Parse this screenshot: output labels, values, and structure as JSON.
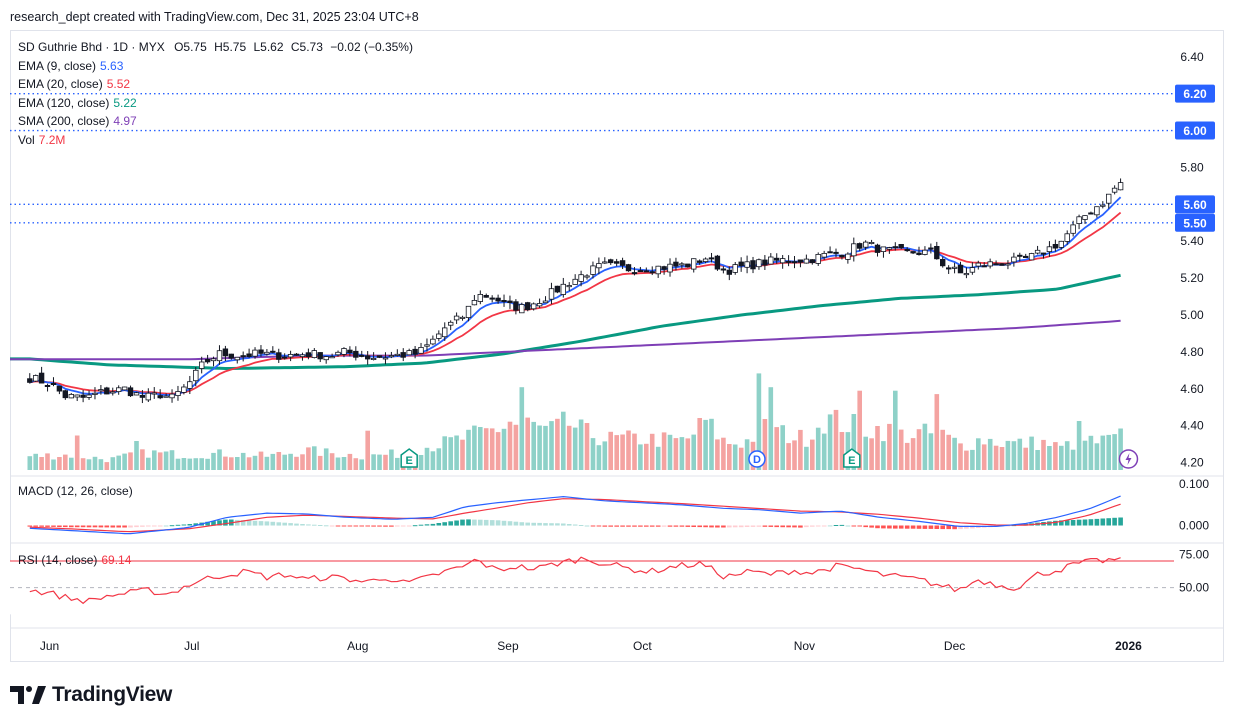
{
  "credit": "research_dept created with TradingView.com, Dec 31, 2025 23:04 UTC+8",
  "brand": "TradingView",
  "colors": {
    "up": "#26a69a",
    "down": "#ef5350",
    "ema9": "#2962ff",
    "ema20": "#f23645",
    "ema120": "#089981",
    "sma200": "#7e3fb6",
    "rsi": "#f23645",
    "macd": "#2962ff",
    "signal": "#f23645",
    "vol_up": "#8ed1c8",
    "vol_down": "#f4a3a1",
    "hline": "#2962ff"
  },
  "legend": {
    "symbol": "SD Guthrie Bhd · 1D · MYX",
    "o_label": "O",
    "o": "5.75",
    "h_label": "H",
    "h": "5.75",
    "l_label": "L",
    "l": "5.62",
    "c_label": "C",
    "c": "5.73",
    "change": "−0.02 (−0.35%)",
    "ema9_label": "EMA (9, close)",
    "ema9": "5.63",
    "ema20_label": "EMA (20, close)",
    "ema20": "5.52",
    "ema120_label": "EMA (120, close)",
    "ema120": "5.22",
    "sma200_label": "SMA (200, close)",
    "sma200": "4.97",
    "vol_label": "Vol",
    "vol": "7.2M"
  },
  "macd_label": "MACD (12, 26, close)",
  "rsi_label": "RSI (14, close)",
  "rsi_value": "69.14",
  "chart_data": {
    "type": "candlestick",
    "price_axis_ticks": [
      "6.40",
      "5.80",
      "5.40",
      "5.20",
      "5.00",
      "4.80",
      "4.60",
      "4.40",
      "4.20"
    ],
    "price_ylim": [
      4.16,
      6.48
    ],
    "horizontal_lines": [
      6.2,
      6.0,
      5.6,
      5.5
    ],
    "horizontal_line_labels": [
      "6.20",
      "6.00",
      "5.60",
      "5.50"
    ],
    "current_price_label": "5.73",
    "x_tick_labels": [
      "Jun",
      "Jul",
      "Aug",
      "Sep",
      "Oct",
      "Nov",
      "Dec",
      "2026"
    ],
    "x_tick_days": [
      5,
      41,
      83,
      121,
      155,
      196,
      234,
      278
    ],
    "x_range_days": [
      -5,
      288
    ],
    "macd_axis_ticks": [
      "0.100",
      "0.000"
    ],
    "macd_ylim": [
      -0.035,
      0.115
    ],
    "rsi_axis_ticks": [
      "75.00",
      "50.00"
    ],
    "rsi_levels": [
      70,
      50,
      30
    ],
    "rsi_ylim": [
      22,
      82
    ],
    "event_markers": [
      {
        "day": 96,
        "letter": "E"
      },
      {
        "day": 184,
        "letter": "D"
      },
      {
        "day": 208,
        "letter": "E"
      }
    ],
    "close_anchors": [
      [
        0,
        4.66
      ],
      [
        5,
        4.63
      ],
      [
        9,
        4.56
      ],
      [
        14,
        4.55
      ],
      [
        18,
        4.58
      ],
      [
        24,
        4.6
      ],
      [
        29,
        4.55
      ],
      [
        33,
        4.57
      ],
      [
        36,
        4.55
      ],
      [
        40,
        4.62
      ],
      [
        44,
        4.74
      ],
      [
        48,
        4.79
      ],
      [
        53,
        4.78
      ],
      [
        58,
        4.79
      ],
      [
        64,
        4.78
      ],
      [
        70,
        4.79
      ],
      [
        76,
        4.78
      ],
      [
        80,
        4.8
      ],
      [
        86,
        4.77
      ],
      [
        92,
        4.78
      ],
      [
        98,
        4.79
      ],
      [
        101,
        4.84
      ],
      [
        105,
        4.93
      ],
      [
        110,
        5.0
      ],
      [
        113,
        5.11
      ],
      [
        117,
        5.1
      ],
      [
        121,
        5.05
      ],
      [
        125,
        5.04
      ],
      [
        130,
        5.09
      ],
      [
        135,
        5.16
      ],
      [
        140,
        5.22
      ],
      [
        145,
        5.27
      ],
      [
        152,
        5.25
      ],
      [
        160,
        5.26
      ],
      [
        166,
        5.27
      ],
      [
        171,
        5.31
      ],
      [
        176,
        5.24
      ],
      [
        182,
        5.27
      ],
      [
        187,
        5.29
      ],
      [
        192,
        5.3
      ],
      [
        197,
        5.3
      ],
      [
        202,
        5.33
      ],
      [
        206,
        5.34
      ],
      [
        211,
        5.39
      ],
      [
        216,
        5.35
      ],
      [
        222,
        5.34
      ],
      [
        228,
        5.34
      ],
      [
        232,
        5.26
      ],
      [
        236,
        5.22
      ],
      [
        240,
        5.27
      ],
      [
        244,
        5.28
      ],
      [
        249,
        5.29
      ],
      [
        253,
        5.31
      ],
      [
        257,
        5.35
      ],
      [
        261,
        5.4
      ],
      [
        265,
        5.5
      ],
      [
        268,
        5.56
      ],
      [
        272,
        5.62
      ],
      [
        275,
        5.7
      ],
      [
        277,
        5.73
      ]
    ],
    "ema120_anchors": [
      [
        -5,
        4.77
      ],
      [
        20,
        4.73
      ],
      [
        50,
        4.71
      ],
      [
        80,
        4.72
      ],
      [
        100,
        4.74
      ],
      [
        120,
        4.79
      ],
      [
        140,
        4.86
      ],
      [
        160,
        4.94
      ],
      [
        180,
        5.0
      ],
      [
        200,
        5.05
      ],
      [
        220,
        5.09
      ],
      [
        240,
        5.11
      ],
      [
        260,
        5.14
      ],
      [
        277,
        5.22
      ]
    ],
    "sma200_anchors": [
      [
        -5,
        4.76
      ],
      [
        40,
        4.76
      ],
      [
        70,
        4.78
      ],
      [
        100,
        4.78
      ],
      [
        130,
        4.81
      ],
      [
        160,
        4.84
      ],
      [
        190,
        4.87
      ],
      [
        220,
        4.9
      ],
      [
        250,
        4.93
      ],
      [
        277,
        4.97
      ]
    ],
    "volume_millions_anchors": [
      [
        0,
        2.0
      ],
      [
        10,
        2.2
      ],
      [
        20,
        1.5
      ],
      [
        30,
        2.5
      ],
      [
        40,
        2.2
      ],
      [
        50,
        2.4
      ],
      [
        60,
        2.0
      ],
      [
        70,
        2.8
      ],
      [
        75,
        2.5
      ],
      [
        85,
        2.0
      ],
      [
        96,
        2.5
      ],
      [
        101,
        3.5
      ],
      [
        106,
        4.0
      ],
      [
        111,
        4.8
      ],
      [
        116,
        5.6
      ],
      [
        121,
        6.5
      ],
      [
        126,
        6.7
      ],
      [
        131,
        5.5
      ],
      [
        136,
        6.8
      ],
      [
        141,
        5.3
      ],
      [
        146,
        4.5
      ],
      [
        156,
        4.5
      ],
      [
        166,
        4.2
      ],
      [
        171,
        7.0
      ],
      [
        176,
        3.9
      ],
      [
        181,
        4.0
      ],
      [
        186,
        6.2
      ],
      [
        191,
        5.2
      ],
      [
        196,
        4.5
      ],
      [
        201,
        7.4
      ],
      [
        206,
        6.8
      ],
      [
        211,
        6.0
      ],
      [
        216,
        5.9
      ],
      [
        221,
        5.0
      ],
      [
        226,
        5.3
      ],
      [
        231,
        5.0
      ],
      [
        236,
        3.5
      ],
      [
        241,
        4.5
      ],
      [
        246,
        4.0
      ],
      [
        251,
        3.8
      ],
      [
        256,
        4.0
      ],
      [
        261,
        3.2
      ],
      [
        266,
        4.3
      ],
      [
        271,
        4.0
      ],
      [
        277,
        5.0
      ]
    ],
    "volume_spikes_millions": [
      [
        12,
        5.0
      ],
      [
        27,
        4.2
      ],
      [
        85,
        5.7
      ],
      [
        121,
        7.0
      ],
      [
        124,
        12.0
      ],
      [
        184,
        14.0
      ],
      [
        187,
        12.0
      ],
      [
        210,
        11.5
      ],
      [
        219,
        11.5
      ],
      [
        230,
        11.0
      ],
      [
        266,
        7.1
      ]
    ],
    "rsi_anchors": [
      [
        0,
        48
      ],
      [
        5,
        46
      ],
      [
        10,
        42
      ],
      [
        15,
        40
      ],
      [
        20,
        44
      ],
      [
        25,
        46
      ],
      [
        30,
        48
      ],
      [
        35,
        45
      ],
      [
        40,
        52
      ],
      [
        45,
        57
      ],
      [
        50,
        60
      ],
      [
        55,
        62
      ],
      [
        60,
        58
      ],
      [
        65,
        60
      ],
      [
        70,
        56
      ],
      [
        75,
        58
      ],
      [
        80,
        57
      ],
      [
        85,
        54
      ],
      [
        90,
        58
      ],
      [
        95,
        53
      ],
      [
        100,
        57
      ],
      [
        105,
        62
      ],
      [
        110,
        66
      ],
      [
        113,
        71
      ],
      [
        118,
        63
      ],
      [
        123,
        66
      ],
      [
        128,
        64
      ],
      [
        133,
        68
      ],
      [
        140,
        72
      ],
      [
        146,
        68
      ],
      [
        152,
        64
      ],
      [
        157,
        62
      ],
      [
        163,
        66
      ],
      [
        170,
        68
      ],
      [
        176,
        58
      ],
      [
        182,
        62
      ],
      [
        188,
        60
      ],
      [
        193,
        63
      ],
      [
        198,
        61
      ],
      [
        204,
        66
      ],
      [
        210,
        64
      ],
      [
        215,
        60
      ],
      [
        220,
        58
      ],
      [
        225,
        56
      ],
      [
        230,
        52
      ],
      [
        235,
        48
      ],
      [
        240,
        56
      ],
      [
        245,
        52
      ],
      [
        250,
        50
      ],
      [
        255,
        60
      ],
      [
        260,
        63
      ],
      [
        265,
        68
      ],
      [
        270,
        70
      ],
      [
        275,
        71
      ],
      [
        277,
        69
      ]
    ],
    "macd_anchors": [
      [
        -5,
        -0.004
      ],
      [
        10,
        -0.012
      ],
      [
        25,
        -0.02
      ],
      [
        40,
        -0.005
      ],
      [
        50,
        0.02
      ],
      [
        60,
        0.03
      ],
      [
        70,
        0.028
      ],
      [
        80,
        0.02
      ],
      [
        92,
        0.015
      ],
      [
        102,
        0.02
      ],
      [
        110,
        0.045
      ],
      [
        118,
        0.055
      ],
      [
        126,
        0.062
      ],
      [
        135,
        0.07
      ],
      [
        145,
        0.06
      ],
      [
        155,
        0.055
      ],
      [
        165,
        0.05
      ],
      [
        175,
        0.042
      ],
      [
        185,
        0.038
      ],
      [
        195,
        0.03
      ],
      [
        205,
        0.035
      ],
      [
        215,
        0.02
      ],
      [
        225,
        0.01
      ],
      [
        235,
        -0.002
      ],
      [
        245,
        -0.002
      ],
      [
        252,
        0.005
      ],
      [
        260,
        0.02
      ],
      [
        268,
        0.04
      ],
      [
        277,
        0.075
      ]
    ],
    "signal_anchors": [
      [
        -5,
        -0.002
      ],
      [
        10,
        -0.008
      ],
      [
        25,
        -0.015
      ],
      [
        40,
        -0.008
      ],
      [
        50,
        0.005
      ],
      [
        60,
        0.02
      ],
      [
        70,
        0.025
      ],
      [
        80,
        0.022
      ],
      [
        92,
        0.018
      ],
      [
        102,
        0.016
      ],
      [
        110,
        0.03
      ],
      [
        118,
        0.042
      ],
      [
        126,
        0.055
      ],
      [
        135,
        0.065
      ],
      [
        145,
        0.063
      ],
      [
        155,
        0.058
      ],
      [
        165,
        0.053
      ],
      [
        175,
        0.047
      ],
      [
        185,
        0.041
      ],
      [
        195,
        0.035
      ],
      [
        205,
        0.033
      ],
      [
        215,
        0.027
      ],
      [
        225,
        0.018
      ],
      [
        235,
        0.007
      ],
      [
        245,
        0.001
      ],
      [
        252,
        0.001
      ],
      [
        260,
        0.008
      ],
      [
        268,
        0.025
      ],
      [
        277,
        0.055
      ]
    ]
  }
}
